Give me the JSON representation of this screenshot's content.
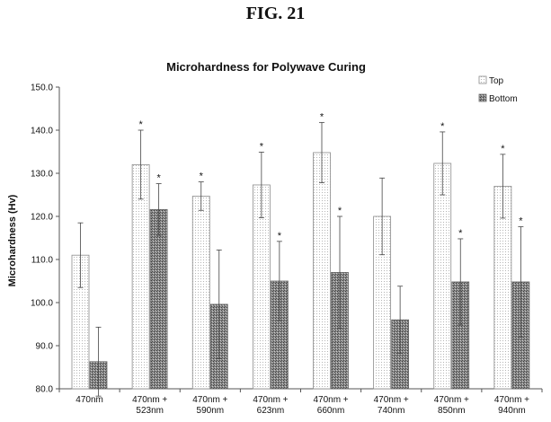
{
  "figure_label": "FIG. 21",
  "chart_data": {
    "type": "bar",
    "title": "Microhardness for Polywave Curing",
    "xlabel": "",
    "ylabel": "Microhardness (Hv)",
    "ylim": [
      80.0,
      150.0
    ],
    "yticks": [
      "80.0",
      "90.0",
      "100.0",
      "110.0",
      "120.0",
      "130.0",
      "140.0",
      "150.0"
    ],
    "categories": [
      [
        "470nm"
      ],
      [
        "470nm +",
        "523nm"
      ],
      [
        "470nm +",
        "590nm"
      ],
      [
        "470nm +",
        "623nm"
      ],
      [
        "470nm +",
        "660nm"
      ],
      [
        "470nm +",
        "740nm"
      ],
      [
        "470nm +",
        "850nm"
      ],
      [
        "470nm +",
        "940nm"
      ]
    ],
    "legend_position": "top-right",
    "grid": false,
    "significance_marker": "*",
    "series": [
      {
        "name": "Top",
        "pattern": "dotted",
        "values": [
          111.0,
          132.0,
          124.7,
          127.3,
          134.8,
          120.0,
          132.3,
          127.0
        ],
        "errors": [
          7.5,
          8.0,
          3.3,
          7.6,
          7.0,
          8.9,
          7.3,
          7.4
        ],
        "significant": [
          false,
          true,
          true,
          true,
          true,
          false,
          true,
          true
        ]
      },
      {
        "name": "Bottom",
        "pattern": "dense",
        "values": [
          86.3,
          121.6,
          99.6,
          105.0,
          107.0,
          96.0,
          104.8,
          104.8
        ],
        "errors": [
          8.0,
          6.0,
          12.6,
          9.2,
          13.0,
          7.8,
          10.0,
          12.8
        ],
        "significant": [
          false,
          true,
          false,
          true,
          true,
          false,
          true,
          true
        ]
      }
    ]
  }
}
